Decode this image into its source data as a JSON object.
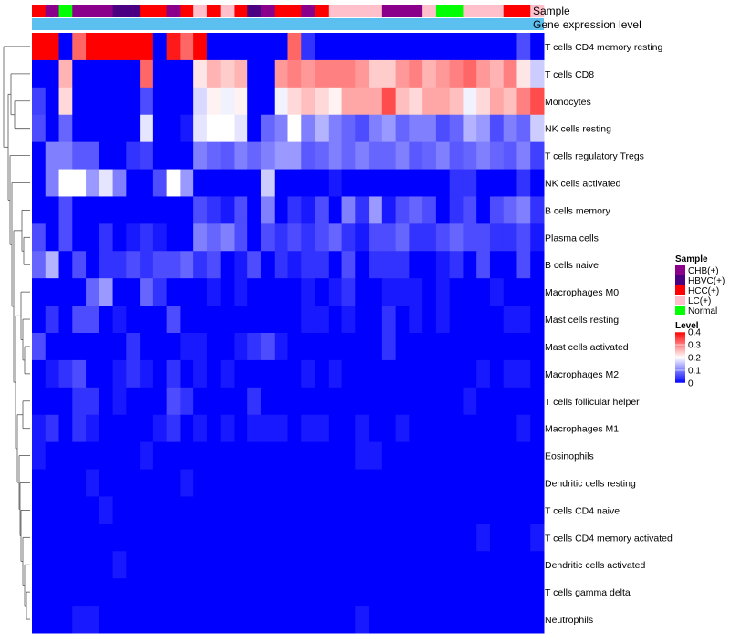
{
  "chart_data": {
    "type": "heatmap",
    "title": "",
    "annotation_tracks": [
      {
        "name": "Sample",
        "label": "Sample"
      },
      {
        "name": "Gene expression level",
        "label": "Gene expression level"
      }
    ],
    "sample_groups": [
      "HCC(+)",
      "CHB(+)",
      "Normal",
      "CHB(+)",
      "CHB(+)",
      "CHB(+)",
      "HBVC(+)",
      "HBVC(+)",
      "HCC(+)",
      "HCC(+)",
      "CHB(+)",
      "HCC(+)",
      "LC(+)",
      "HCC(+)",
      "LC(+)",
      "HCC(+)",
      "HBVC(+)",
      "CHB(+)",
      "HCC(+)",
      "HCC(+)",
      "CHB(+)",
      "HCC(+)",
      "LC(+)",
      "LC(+)",
      "LC(+)",
      "LC(+)",
      "CHB(+)",
      "CHB(+)",
      "CHB(+)",
      "LC(+)",
      "Normal",
      "Normal",
      "LC(+)",
      "LC(+)",
      "LC(+)",
      "HCC(+)",
      "HCC(+)",
      "LC(+)"
    ],
    "gene_expression_color": "#5bc0f0",
    "rows": [
      "T cells CD4 memory resting",
      "T cells CD8",
      "Monocytes",
      "NK cells resting",
      "T cells regulatory  Tregs",
      "NK cells activated",
      "B cells memory",
      "Plasma cells",
      "B cells naive",
      "Macrophages M0",
      "Mast cells resting",
      "Mast cells activated",
      "Macrophages M2",
      "T cells follicular helper",
      "Macrophages M1",
      "Eosinophils",
      "Dendritic cells resting",
      "T cells CD4 naive",
      "T cells CD4 memory activated",
      "Dendritic cells activated",
      "T cells gamma delta",
      "Neutrophils"
    ],
    "values": [
      [
        0.4,
        0.4,
        0.0,
        0.32,
        0.4,
        0.4,
        0.4,
        0.4,
        0.4,
        0.0,
        0.38,
        0.32,
        0.4,
        0.0,
        0.0,
        0.0,
        0.0,
        0.0,
        0.0,
        0.32,
        0.04,
        0.0,
        0.0,
        0.0,
        0.0,
        0.0,
        0.0,
        0.0,
        0.0,
        0.0,
        0.0,
        0.0,
        0.0,
        0.0,
        0.0,
        0.0,
        0.06,
        0.0
      ],
      [
        0.0,
        0.0,
        0.26,
        0.0,
        0.0,
        0.0,
        0.0,
        0.0,
        0.32,
        0.0,
        0.0,
        0.0,
        0.22,
        0.26,
        0.24,
        0.26,
        0.0,
        0.0,
        0.28,
        0.3,
        0.28,
        0.3,
        0.3,
        0.3,
        0.28,
        0.24,
        0.24,
        0.28,
        0.3,
        0.26,
        0.28,
        0.3,
        0.32,
        0.28,
        0.26,
        0.3,
        0.22,
        0.16
      ],
      [
        0.05,
        0.0,
        0.23,
        0.0,
        0.0,
        0.0,
        0.0,
        0.0,
        0.06,
        0.0,
        0.0,
        0.0,
        0.17,
        0.21,
        0.19,
        0.21,
        0.0,
        0.0,
        0.19,
        0.23,
        0.25,
        0.23,
        0.21,
        0.27,
        0.27,
        0.27,
        0.34,
        0.25,
        0.23,
        0.27,
        0.27,
        0.25,
        0.19,
        0.23,
        0.27,
        0.25,
        0.3,
        0.34
      ],
      [
        0.06,
        0.0,
        0.08,
        0.0,
        0.0,
        0.0,
        0.0,
        0.0,
        0.18,
        0.0,
        0.0,
        0.02,
        0.18,
        0.2,
        0.2,
        0.18,
        0.0,
        0.08,
        0.1,
        0.2,
        0.1,
        0.14,
        0.1,
        0.08,
        0.06,
        0.1,
        0.12,
        0.08,
        0.1,
        0.1,
        0.06,
        0.08,
        0.14,
        0.12,
        0.06,
        0.1,
        0.08,
        0.16
      ],
      [
        0.0,
        0.1,
        0.1,
        0.07,
        0.07,
        0.0,
        0.0,
        0.04,
        0.05,
        0.0,
        0.0,
        0.0,
        0.1,
        0.08,
        0.07,
        0.1,
        0.08,
        0.1,
        0.12,
        0.12,
        0.07,
        0.08,
        0.1,
        0.08,
        0.1,
        0.08,
        0.08,
        0.1,
        0.07,
        0.08,
        0.1,
        0.07,
        0.08,
        0.1,
        0.08,
        0.07,
        0.1,
        0.05
      ],
      [
        0.0,
        0.1,
        0.2,
        0.2,
        0.12,
        0.18,
        0.1,
        0.0,
        0.0,
        0.06,
        0.2,
        0.12,
        0.0,
        0.0,
        0.0,
        0.0,
        0.0,
        0.16,
        0.0,
        0.0,
        0.0,
        0.0,
        0.02,
        0.0,
        0.0,
        0.0,
        0.0,
        0.0,
        0.0,
        0.0,
        0.0,
        0.04,
        0.04,
        0.0,
        0.0,
        0.0,
        0.04,
        0.0
      ],
      [
        0.0,
        0.0,
        0.06,
        0.0,
        0.0,
        0.0,
        0.0,
        0.0,
        0.0,
        0.0,
        0.0,
        0.0,
        0.06,
        0.04,
        0.02,
        0.06,
        0.0,
        0.1,
        0.0,
        0.04,
        0.02,
        0.06,
        0.0,
        0.1,
        0.04,
        0.12,
        0.02,
        0.06,
        0.08,
        0.06,
        0.0,
        0.04,
        0.06,
        0.0,
        0.06,
        0.08,
        0.1,
        0.04
      ],
      [
        0.06,
        0.0,
        0.06,
        0.0,
        0.0,
        0.04,
        0.0,
        0.02,
        0.04,
        0.02,
        0.0,
        0.0,
        0.1,
        0.08,
        0.1,
        0.06,
        0.0,
        0.06,
        0.04,
        0.06,
        0.04,
        0.06,
        0.08,
        0.04,
        0.02,
        0.06,
        0.06,
        0.08,
        0.04,
        0.04,
        0.06,
        0.08,
        0.06,
        0.06,
        0.04,
        0.04,
        0.06,
        0.02
      ],
      [
        0.08,
        0.14,
        0.0,
        0.06,
        0.0,
        0.04,
        0.04,
        0.06,
        0.04,
        0.06,
        0.06,
        0.08,
        0.04,
        0.06,
        0.0,
        0.02,
        0.06,
        0.0,
        0.04,
        0.02,
        0.04,
        0.04,
        0.0,
        0.06,
        0.0,
        0.04,
        0.04,
        0.04,
        0.0,
        0.0,
        0.02,
        0.04,
        0.0,
        0.06,
        0.0,
        0.0,
        0.06,
        0.0
      ],
      [
        0.0,
        0.0,
        0.0,
        0.0,
        0.08,
        0.12,
        0.0,
        0.0,
        0.08,
        0.04,
        0.0,
        0.0,
        0.0,
        0.02,
        0.0,
        0.02,
        0.0,
        0.0,
        0.0,
        0.0,
        0.02,
        0.0,
        0.02,
        0.04,
        0.0,
        0.0,
        0.02,
        0.02,
        0.02,
        0.0,
        0.02,
        0.0,
        0.0,
        0.0,
        0.02,
        0.0,
        0.0,
        0.0
      ],
      [
        0.0,
        0.04,
        0.0,
        0.06,
        0.06,
        0.0,
        0.02,
        0.0,
        0.0,
        0.0,
        0.06,
        0.0,
        0.0,
        0.0,
        0.0,
        0.0,
        0.0,
        0.0,
        0.0,
        0.0,
        0.02,
        0.02,
        0.0,
        0.02,
        0.0,
        0.0,
        0.04,
        0.0,
        0.02,
        0.0,
        0.02,
        0.0,
        0.0,
        0.0,
        0.0,
        0.02,
        0.02,
        0.0
      ],
      [
        0.06,
        0.0,
        0.0,
        0.0,
        0.0,
        0.0,
        0.0,
        0.04,
        0.0,
        0.0,
        0.0,
        0.02,
        0.02,
        0.0,
        0.0,
        0.02,
        0.04,
        0.06,
        0.02,
        0.0,
        0.0,
        0.0,
        0.0,
        0.0,
        0.0,
        0.0,
        0.04,
        0.0,
        0.0,
        0.0,
        0.0,
        0.0,
        0.0,
        0.0,
        0.0,
        0.0,
        0.0,
        0.0
      ],
      [
        0.0,
        0.02,
        0.04,
        0.06,
        0.0,
        0.0,
        0.02,
        0.04,
        0.02,
        0.0,
        0.04,
        0.0,
        0.02,
        0.0,
        0.02,
        0.0,
        0.0,
        0.0,
        0.0,
        0.0,
        0.02,
        0.0,
        0.02,
        0.0,
        0.0,
        0.0,
        0.0,
        0.0,
        0.0,
        0.0,
        0.0,
        0.0,
        0.0,
        0.02,
        0.0,
        0.02,
        0.02,
        0.0
      ],
      [
        0.0,
        0.0,
        0.0,
        0.04,
        0.04,
        0.0,
        0.02,
        0.0,
        0.0,
        0.0,
        0.06,
        0.04,
        0.0,
        0.0,
        0.0,
        0.0,
        0.04,
        0.0,
        0.0,
        0.0,
        0.0,
        0.0,
        0.0,
        0.0,
        0.0,
        0.0,
        0.0,
        0.0,
        0.0,
        0.0,
        0.0,
        0.0,
        0.02,
        0.0,
        0.0,
        0.0,
        0.0,
        0.0
      ],
      [
        0.02,
        0.04,
        0.0,
        0.04,
        0.02,
        0.0,
        0.0,
        0.0,
        0.0,
        0.02,
        0.04,
        0.0,
        0.02,
        0.0,
        0.02,
        0.0,
        0.02,
        0.02,
        0.02,
        0.0,
        0.02,
        0.02,
        0.0,
        0.0,
        0.02,
        0.0,
        0.0,
        0.02,
        0.0,
        0.0,
        0.0,
        0.0,
        0.0,
        0.0,
        0.0,
        0.0,
        0.02,
        0.0
      ],
      [
        0.02,
        0.0,
        0.0,
        0.0,
        0.0,
        0.0,
        0.0,
        0.0,
        0.02,
        0.0,
        0.0,
        0.0,
        0.0,
        0.0,
        0.0,
        0.0,
        0.0,
        0.0,
        0.0,
        0.0,
        0.0,
        0.0,
        0.0,
        0.0,
        0.02,
        0.02,
        0.0,
        0.0,
        0.0,
        0.0,
        0.0,
        0.0,
        0.0,
        0.0,
        0.0,
        0.0,
        0.0,
        0.0
      ],
      [
        0.0,
        0.0,
        0.0,
        0.0,
        0.02,
        0.0,
        0.0,
        0.0,
        0.0,
        0.0,
        0.0,
        0.02,
        0.0,
        0.0,
        0.0,
        0.0,
        0.0,
        0.0,
        0.0,
        0.0,
        0.0,
        0.0,
        0.0,
        0.0,
        0.0,
        0.0,
        0.0,
        0.0,
        0.0,
        0.0,
        0.0,
        0.0,
        0.0,
        0.0,
        0.0,
        0.0,
        0.0,
        0.0
      ],
      [
        0.0,
        0.0,
        0.0,
        0.0,
        0.0,
        0.02,
        0.0,
        0.0,
        0.0,
        0.0,
        0.0,
        0.0,
        0.0,
        0.0,
        0.0,
        0.0,
        0.0,
        0.0,
        0.0,
        0.0,
        0.0,
        0.0,
        0.0,
        0.0,
        0.0,
        0.0,
        0.0,
        0.0,
        0.0,
        0.0,
        0.0,
        0.0,
        0.0,
        0.0,
        0.0,
        0.0,
        0.0,
        0.0
      ],
      [
        0.0,
        0.0,
        0.0,
        0.0,
        0.0,
        0.0,
        0.0,
        0.0,
        0.0,
        0.0,
        0.0,
        0.0,
        0.0,
        0.0,
        0.0,
        0.0,
        0.0,
        0.0,
        0.0,
        0.0,
        0.0,
        0.0,
        0.0,
        0.0,
        0.0,
        0.0,
        0.0,
        0.0,
        0.0,
        0.0,
        0.0,
        0.0,
        0.0,
        0.02,
        0.0,
        0.0,
        0.0,
        0.02
      ],
      [
        0.0,
        0.0,
        0.0,
        0.0,
        0.0,
        0.0,
        0.02,
        0.0,
        0.0,
        0.0,
        0.0,
        0.0,
        0.0,
        0.0,
        0.0,
        0.0,
        0.0,
        0.0,
        0.0,
        0.0,
        0.0,
        0.0,
        0.0,
        0.0,
        0.0,
        0.0,
        0.0,
        0.0,
        0.0,
        0.0,
        0.0,
        0.0,
        0.0,
        0.0,
        0.0,
        0.0,
        0.0,
        0.0
      ],
      [
        0.0,
        0.0,
        0.0,
        0.0,
        0.0,
        0.0,
        0.0,
        0.0,
        0.0,
        0.0,
        0.0,
        0.0,
        0.0,
        0.0,
        0.0,
        0.0,
        0.0,
        0.0,
        0.0,
        0.0,
        0.0,
        0.0,
        0.0,
        0.0,
        0.0,
        0.0,
        0.0,
        0.0,
        0.0,
        0.0,
        0.0,
        0.0,
        0.0,
        0.0,
        0.0,
        0.0,
        0.0,
        0.0
      ],
      [
        0.0,
        0.0,
        0.0,
        0.02,
        0.02,
        0.0,
        0.0,
        0.0,
        0.0,
        0.0,
        0.0,
        0.0,
        0.0,
        0.0,
        0.0,
        0.0,
        0.0,
        0.0,
        0.0,
        0.0,
        0.0,
        0.0,
        0.0,
        0.0,
        0.02,
        0.0,
        0.0,
        0.0,
        0.0,
        0.0,
        0.0,
        0.0,
        0.0,
        0.0,
        0.0,
        0.0,
        0.0,
        0.0
      ]
    ],
    "color_scale": {
      "min": 0,
      "max": 0.4,
      "stops": [
        {
          "value": 0,
          "color": "#0000ff"
        },
        {
          "value": 0.2,
          "color": "#ffffff"
        },
        {
          "value": 0.4,
          "color": "#ff0000"
        }
      ]
    },
    "legend": {
      "sample": {
        "title": "Sample",
        "entries": [
          {
            "label": "CHB(+)",
            "color": "#8b008b"
          },
          {
            "label": "HBVC(+)",
            "color": "#4b0082"
          },
          {
            "label": "HCC(+)",
            "color": "#ff0000"
          },
          {
            "label": "LC(+)",
            "color": "#ffc0cb"
          },
          {
            "label": "Normal",
            "color": "#00ff00"
          }
        ]
      },
      "level": {
        "title": "Level",
        "ticks": [
          "0.4",
          "0.3",
          "0.2",
          "0.1",
          "0"
        ],
        "tick_values": [
          0.4,
          0.3,
          0.2,
          0.1,
          0
        ]
      }
    },
    "row_dendrogram": true,
    "legend_position": "right"
  }
}
